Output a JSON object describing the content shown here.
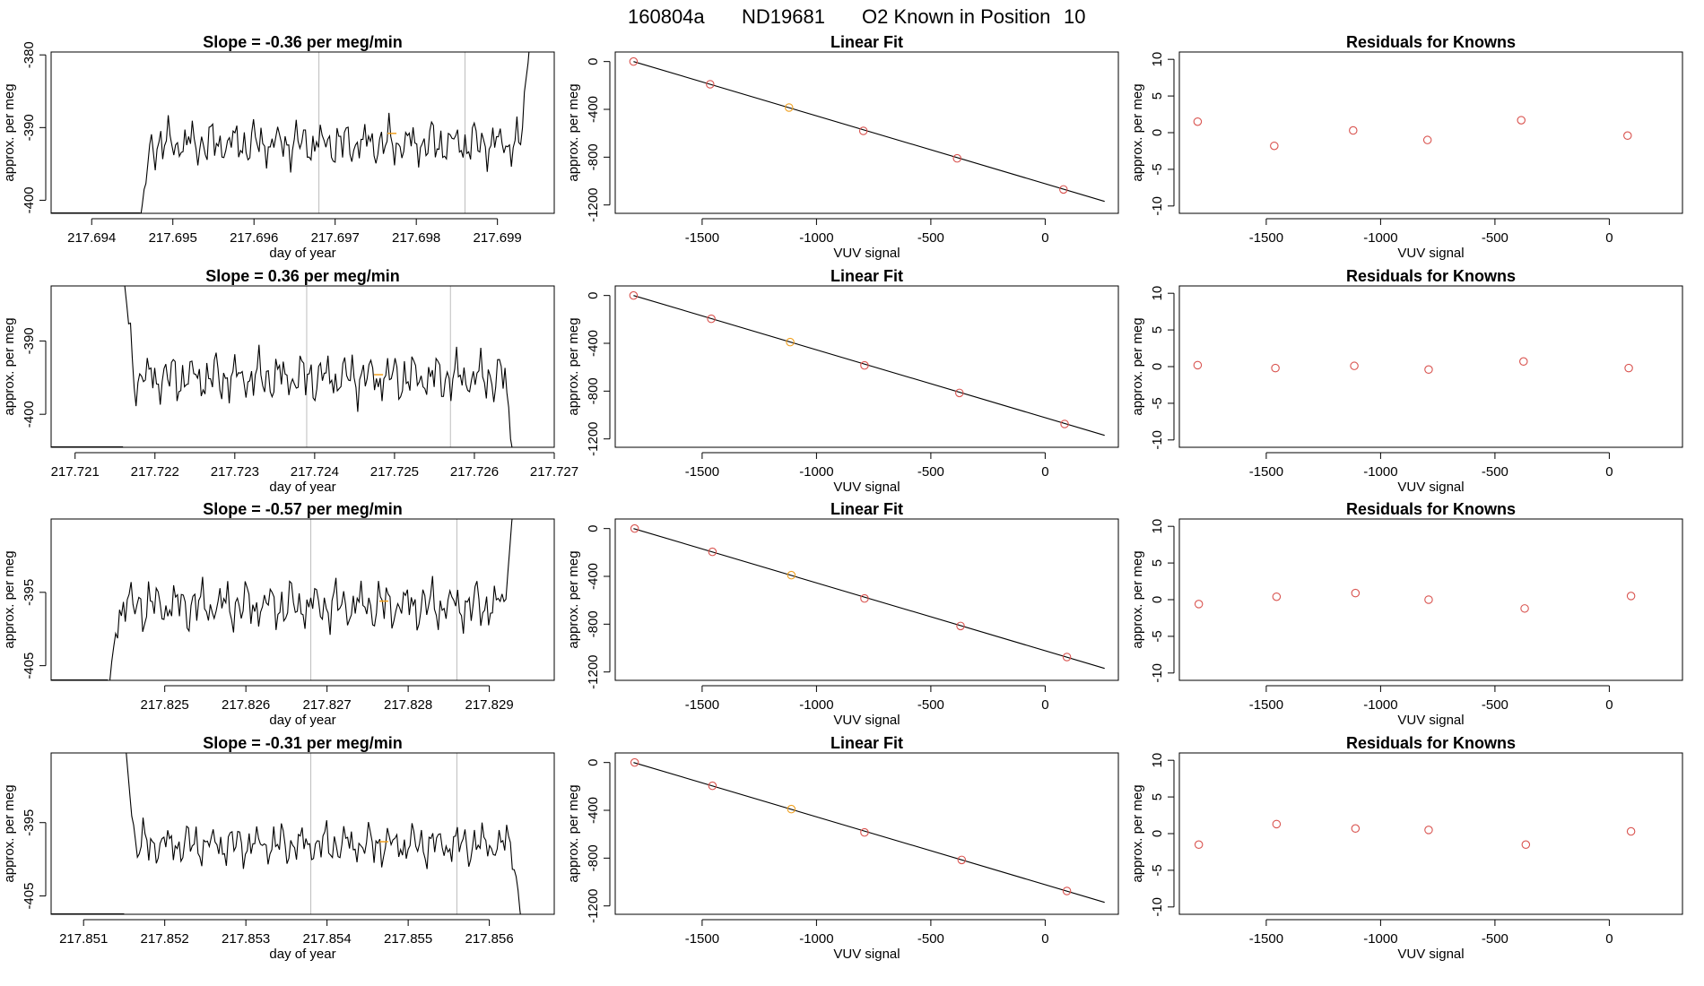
{
  "title": {
    "run": "160804a",
    "tank": "ND19681",
    "desc": "O2 Known in Position",
    "position": "10"
  },
  "colors": {
    "trace": "#000000",
    "vline": "#bdbdbd",
    "point_open": "#d9534f",
    "point_highlight": "#f0a020",
    "axis": "#000000"
  },
  "chart_data": [
    {
      "type": "line",
      "row": 0,
      "title": "Slope = -0.36 per meg/min",
      "xlabel": "day of year",
      "ylabel": "approx. per meg",
      "xlim": [
        217.6935,
        217.6997
      ],
      "ylim": [
        -401.8,
        -379.6
      ],
      "x_ticks": [
        217.694,
        217.695,
        217.696,
        217.697,
        217.698,
        217.699
      ],
      "x_tick_labels": [
        "217.694",
        "217.695",
        "217.696",
        "217.697",
        "217.698",
        "217.699"
      ],
      "y_ticks": [
        -400,
        -390,
        -380
      ],
      "y_tick_labels": [
        "-400",
        "-390",
        "-380"
      ],
      "vlines": [
        217.6968,
        217.6986
      ],
      "trace_start": 217.6946,
      "trace_end": 217.6994,
      "trace_base": -392.2,
      "trace_amp": 2.2,
      "trace_head": -402.5,
      "trace_tail": -378.0,
      "marker_x": 217.6977,
      "marker_y": -390.8
    },
    {
      "type": "line",
      "row": 1,
      "title": "Slope = 0.36 per meg/min",
      "xlabel": "day of year",
      "ylabel": "approx. per meg",
      "xlim": [
        217.7207,
        217.727
      ],
      "ylim": [
        -404.5,
        -382.5
      ],
      "x_ticks": [
        217.721,
        217.722,
        217.723,
        217.724,
        217.725,
        217.726,
        217.727
      ],
      "x_tick_labels": [
        "217.721",
        "217.722",
        "217.723",
        "217.724",
        "217.725",
        "217.726",
        "217.727"
      ],
      "y_ticks": [
        -400,
        -390
      ],
      "y_tick_labels": [
        "-400",
        "-390"
      ],
      "vlines": [
        217.7239,
        217.7257
      ],
      "trace_start": 217.7216,
      "trace_end": 217.7265,
      "trace_base": -395.0,
      "trace_amp": 2.4,
      "trace_head": -380.0,
      "trace_tail": -407.0,
      "marker_x": 217.7248,
      "marker_y": -394.6
    },
    {
      "type": "line",
      "row": 2,
      "title": "Slope = -0.57 per meg/min",
      "xlabel": "day of year",
      "ylabel": "approx. per meg",
      "xlim": [
        217.8236,
        217.8298
      ],
      "ylim": [
        -407.0,
        -385.0
      ],
      "x_ticks": [
        217.825,
        217.826,
        217.827,
        217.828,
        217.829
      ],
      "x_tick_labels": [
        "217.825",
        "217.826",
        "217.827",
        "217.828",
        "217.829"
      ],
      "y_ticks": [
        -405,
        -395
      ],
      "y_tick_labels": [
        "-405",
        "-395"
      ],
      "vlines": [
        217.8268,
        217.8286
      ],
      "trace_start": 217.8243,
      "trace_end": 217.8293,
      "trace_base": -396.8,
      "trace_amp": 2.4,
      "trace_head": -409.0,
      "trace_tail": -383.0,
      "marker_x": 217.8277,
      "marker_y": -396.2
    },
    {
      "type": "line",
      "row": 3,
      "title": "Slope = -0.31 per meg/min",
      "xlabel": "day of year",
      "ylabel": "approx. per meg",
      "xlim": [
        217.8506,
        217.8568
      ],
      "ylim": [
        -407.5,
        -385.5
      ],
      "x_ticks": [
        217.851,
        217.852,
        217.853,
        217.854,
        217.855,
        217.856
      ],
      "x_tick_labels": [
        "217.851",
        "217.852",
        "217.853",
        "217.854",
        "217.855",
        "217.856"
      ],
      "y_ticks": [
        -405,
        -395
      ],
      "y_tick_labels": [
        "-405",
        "-395"
      ],
      "vlines": [
        217.8538,
        217.8556
      ],
      "trace_start": 217.8515,
      "trace_end": 217.8564,
      "trace_base": -398.0,
      "trace_amp": 2.0,
      "trace_head": -383.0,
      "trace_tail": -409.0,
      "marker_x": 217.8547,
      "marker_y": -397.6
    },
    {
      "type": "scatter",
      "row": 0,
      "title": "Linear Fit",
      "xlabel": "VUV signal",
      "ylabel": "approx. per meg",
      "xlim": [
        -1880,
        320
      ],
      "ylim": [
        -1270,
        80
      ],
      "x_ticks": [
        -1500,
        -1000,
        -500,
        0
      ],
      "x_tick_labels": [
        "-1500",
        "-1000",
        "-500",
        "0"
      ],
      "y_ticks": [
        0,
        -400,
        -800,
        -1200
      ],
      "y_tick_labels": [
        "0",
        "-400",
        "-800",
        "-1200"
      ],
      "fit_line": [
        [
          -1800,
          0
        ],
        [
          260,
          -1170
        ]
      ],
      "x": [
        -1800,
        -1465,
        -1120,
        -795,
        -385,
        80
      ],
      "y": [
        0,
        -190,
        -385,
        -580,
        -810,
        -1070
      ],
      "highlight_index": 2
    },
    {
      "type": "scatter",
      "row": 1,
      "title": "Linear Fit",
      "xlabel": "VUV signal",
      "ylabel": "approx. per meg",
      "xlim": [
        -1880,
        320
      ],
      "ylim": [
        -1270,
        80
      ],
      "x_ticks": [
        -1500,
        -1000,
        -500,
        0
      ],
      "x_tick_labels": [
        "-1500",
        "-1000",
        "-500",
        "0"
      ],
      "y_ticks": [
        0,
        -400,
        -800,
        -1200
      ],
      "y_tick_labels": [
        "0",
        "-400",
        "-800",
        "-1200"
      ],
      "fit_line": [
        [
          -1800,
          0
        ],
        [
          260,
          -1170
        ]
      ],
      "x": [
        -1800,
        -1460,
        -1115,
        -790,
        -375,
        85
      ],
      "y": [
        0,
        -195,
        -390,
        -585,
        -815,
        -1075
      ],
      "highlight_index": 2
    },
    {
      "type": "scatter",
      "row": 2,
      "title": "Linear Fit",
      "xlabel": "VUV signal",
      "ylabel": "approx. per meg",
      "xlim": [
        -1880,
        320
      ],
      "ylim": [
        -1270,
        80
      ],
      "x_ticks": [
        -1500,
        -1000,
        -500,
        0
      ],
      "x_tick_labels": [
        "-1500",
        "-1000",
        "-500",
        "0"
      ],
      "y_ticks": [
        0,
        -400,
        -800,
        -1200
      ],
      "y_tick_labels": [
        "0",
        "-400",
        "-800",
        "-1200"
      ],
      "fit_line": [
        [
          -1800,
          0
        ],
        [
          260,
          -1170
        ]
      ],
      "x": [
        -1795,
        -1455,
        -1110,
        -790,
        -370,
        95
      ],
      "y": [
        0,
        -195,
        -390,
        -585,
        -815,
        -1075
      ],
      "highlight_index": 2
    },
    {
      "type": "scatter",
      "row": 3,
      "title": "Linear Fit",
      "xlabel": "VUV signal",
      "ylabel": "approx. per meg",
      "xlim": [
        -1880,
        320
      ],
      "ylim": [
        -1270,
        80
      ],
      "x_ticks": [
        -1500,
        -1000,
        -500,
        0
      ],
      "x_tick_labels": [
        "-1500",
        "-1000",
        "-500",
        "0"
      ],
      "y_ticks": [
        0,
        -400,
        -800,
        -1200
      ],
      "y_tick_labels": [
        "0",
        "-400",
        "-800",
        "-1200"
      ],
      "fit_line": [
        [
          -1800,
          0
        ],
        [
          260,
          -1170
        ]
      ],
      "x": [
        -1795,
        -1455,
        -1110,
        -790,
        -365,
        95
      ],
      "y": [
        0,
        -195,
        -390,
        -585,
        -815,
        -1075
      ],
      "highlight_index": 2
    },
    {
      "type": "scatter",
      "row": 0,
      "title": "Residuals for Knowns",
      "xlabel": "VUV signal",
      "ylabel": "approx. per meg",
      "xlim": [
        -1880,
        320
      ],
      "ylim": [
        -11,
        11
      ],
      "x_ticks": [
        -1500,
        -1000,
        -500,
        0
      ],
      "x_tick_labels": [
        "-1500",
        "-1000",
        "-500",
        "0"
      ],
      "y_ticks": [
        10,
        5,
        0,
        -5,
        -10
      ],
      "y_tick_labels": [
        "10",
        "5",
        "0",
        "-5",
        "-10"
      ],
      "x": [
        -1800,
        -1465,
        -1120,
        -795,
        -385,
        80
      ],
      "y": [
        1.5,
        -1.8,
        0.3,
        -1.0,
        1.7,
        -0.4
      ]
    },
    {
      "type": "scatter",
      "row": 1,
      "title": "Residuals for Knowns",
      "xlabel": "VUV signal",
      "ylabel": "approx. per meg",
      "xlim": [
        -1880,
        320
      ],
      "ylim": [
        -11,
        11
      ],
      "x_ticks": [
        -1500,
        -1000,
        -500,
        0
      ],
      "x_tick_labels": [
        "-1500",
        "-1000",
        "-500",
        "0"
      ],
      "y_ticks": [
        10,
        5,
        0,
        -5,
        -10
      ],
      "y_tick_labels": [
        "10",
        "5",
        "0",
        "-5",
        "-10"
      ],
      "x": [
        -1800,
        -1460,
        -1115,
        -790,
        -375,
        85
      ],
      "y": [
        0.2,
        -0.2,
        0.1,
        -0.4,
        0.7,
        -0.2
      ]
    },
    {
      "type": "scatter",
      "row": 2,
      "title": "Residuals for Knowns",
      "xlabel": "VUV signal",
      "ylabel": "approx. per meg",
      "xlim": [
        -1880,
        320
      ],
      "ylim": [
        -11,
        11
      ],
      "x_ticks": [
        -1500,
        -1000,
        -500,
        0
      ],
      "x_tick_labels": [
        "-1500",
        "-1000",
        "-500",
        "0"
      ],
      "y_ticks": [
        10,
        5,
        0,
        -5,
        -10
      ],
      "y_tick_labels": [
        "10",
        "5",
        "0",
        "-5",
        "-10"
      ],
      "x": [
        -1795,
        -1455,
        -1110,
        -790,
        -370,
        95
      ],
      "y": [
        -0.6,
        0.4,
        0.9,
        0.0,
        -1.2,
        0.5
      ]
    },
    {
      "type": "scatter",
      "row": 3,
      "title": "Residuals for Knowns",
      "xlabel": "VUV signal",
      "ylabel": "approx. per meg",
      "xlim": [
        -1880,
        320
      ],
      "ylim": [
        -11,
        11
      ],
      "x_ticks": [
        -1500,
        -1000,
        -500,
        0
      ],
      "x_tick_labels": [
        "-1500",
        "-1000",
        "-500",
        "0"
      ],
      "y_ticks": [
        10,
        5,
        0,
        -5,
        -10
      ],
      "y_tick_labels": [
        "10",
        "5",
        "0",
        "-5",
        "-10"
      ],
      "x": [
        -1795,
        -1455,
        -1110,
        -790,
        -365,
        95
      ],
      "y": [
        -1.5,
        1.3,
        0.7,
        0.5,
        -1.5,
        0.3
      ]
    }
  ]
}
